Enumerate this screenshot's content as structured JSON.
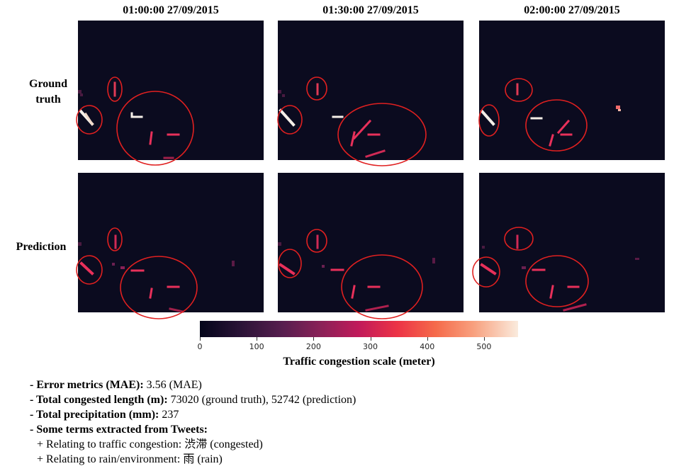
{
  "columns": [
    "01:00:00 27/09/2015",
    "01:30:00 27/09/2015",
    "02:00:00 27/09/2015"
  ],
  "rows": [
    {
      "label_line1": "Ground",
      "label_line2": "truth"
    },
    {
      "label_line1": "Prediction",
      "label_line2": ""
    }
  ],
  "colorbar": {
    "label": "Traffic congestion scale (meter)",
    "min": 0,
    "max": 560,
    "ticks": [
      "0",
      "100",
      "200",
      "300",
      "400",
      "500"
    ],
    "colors": [
      "#03051a",
      "#2b1337",
      "#571e4f",
      "#8a2157",
      "#c11a5a",
      "#ec3346",
      "#f56a4a",
      "#f8a07e",
      "#faebdd"
    ]
  },
  "annotation_color": "#e02020",
  "notes": {
    "mae_label": "- Error metrics (MAE):",
    "mae_value": " 3.56 (MAE)",
    "length_label": "- Total congested length (m):",
    "length_value": " 73020 (ground truth), 52742 (prediction)",
    "precip_label": "- Total precipitation (mm):",
    "precip_value": " 237",
    "tweets_label": "- Some terms extracted from Tweets:",
    "traffic_term": "+ Relating to traffic congestion:  渋滞 (congested)",
    "rain_term": "+ Relating to rain/environment: 雨 (rain)"
  }
}
